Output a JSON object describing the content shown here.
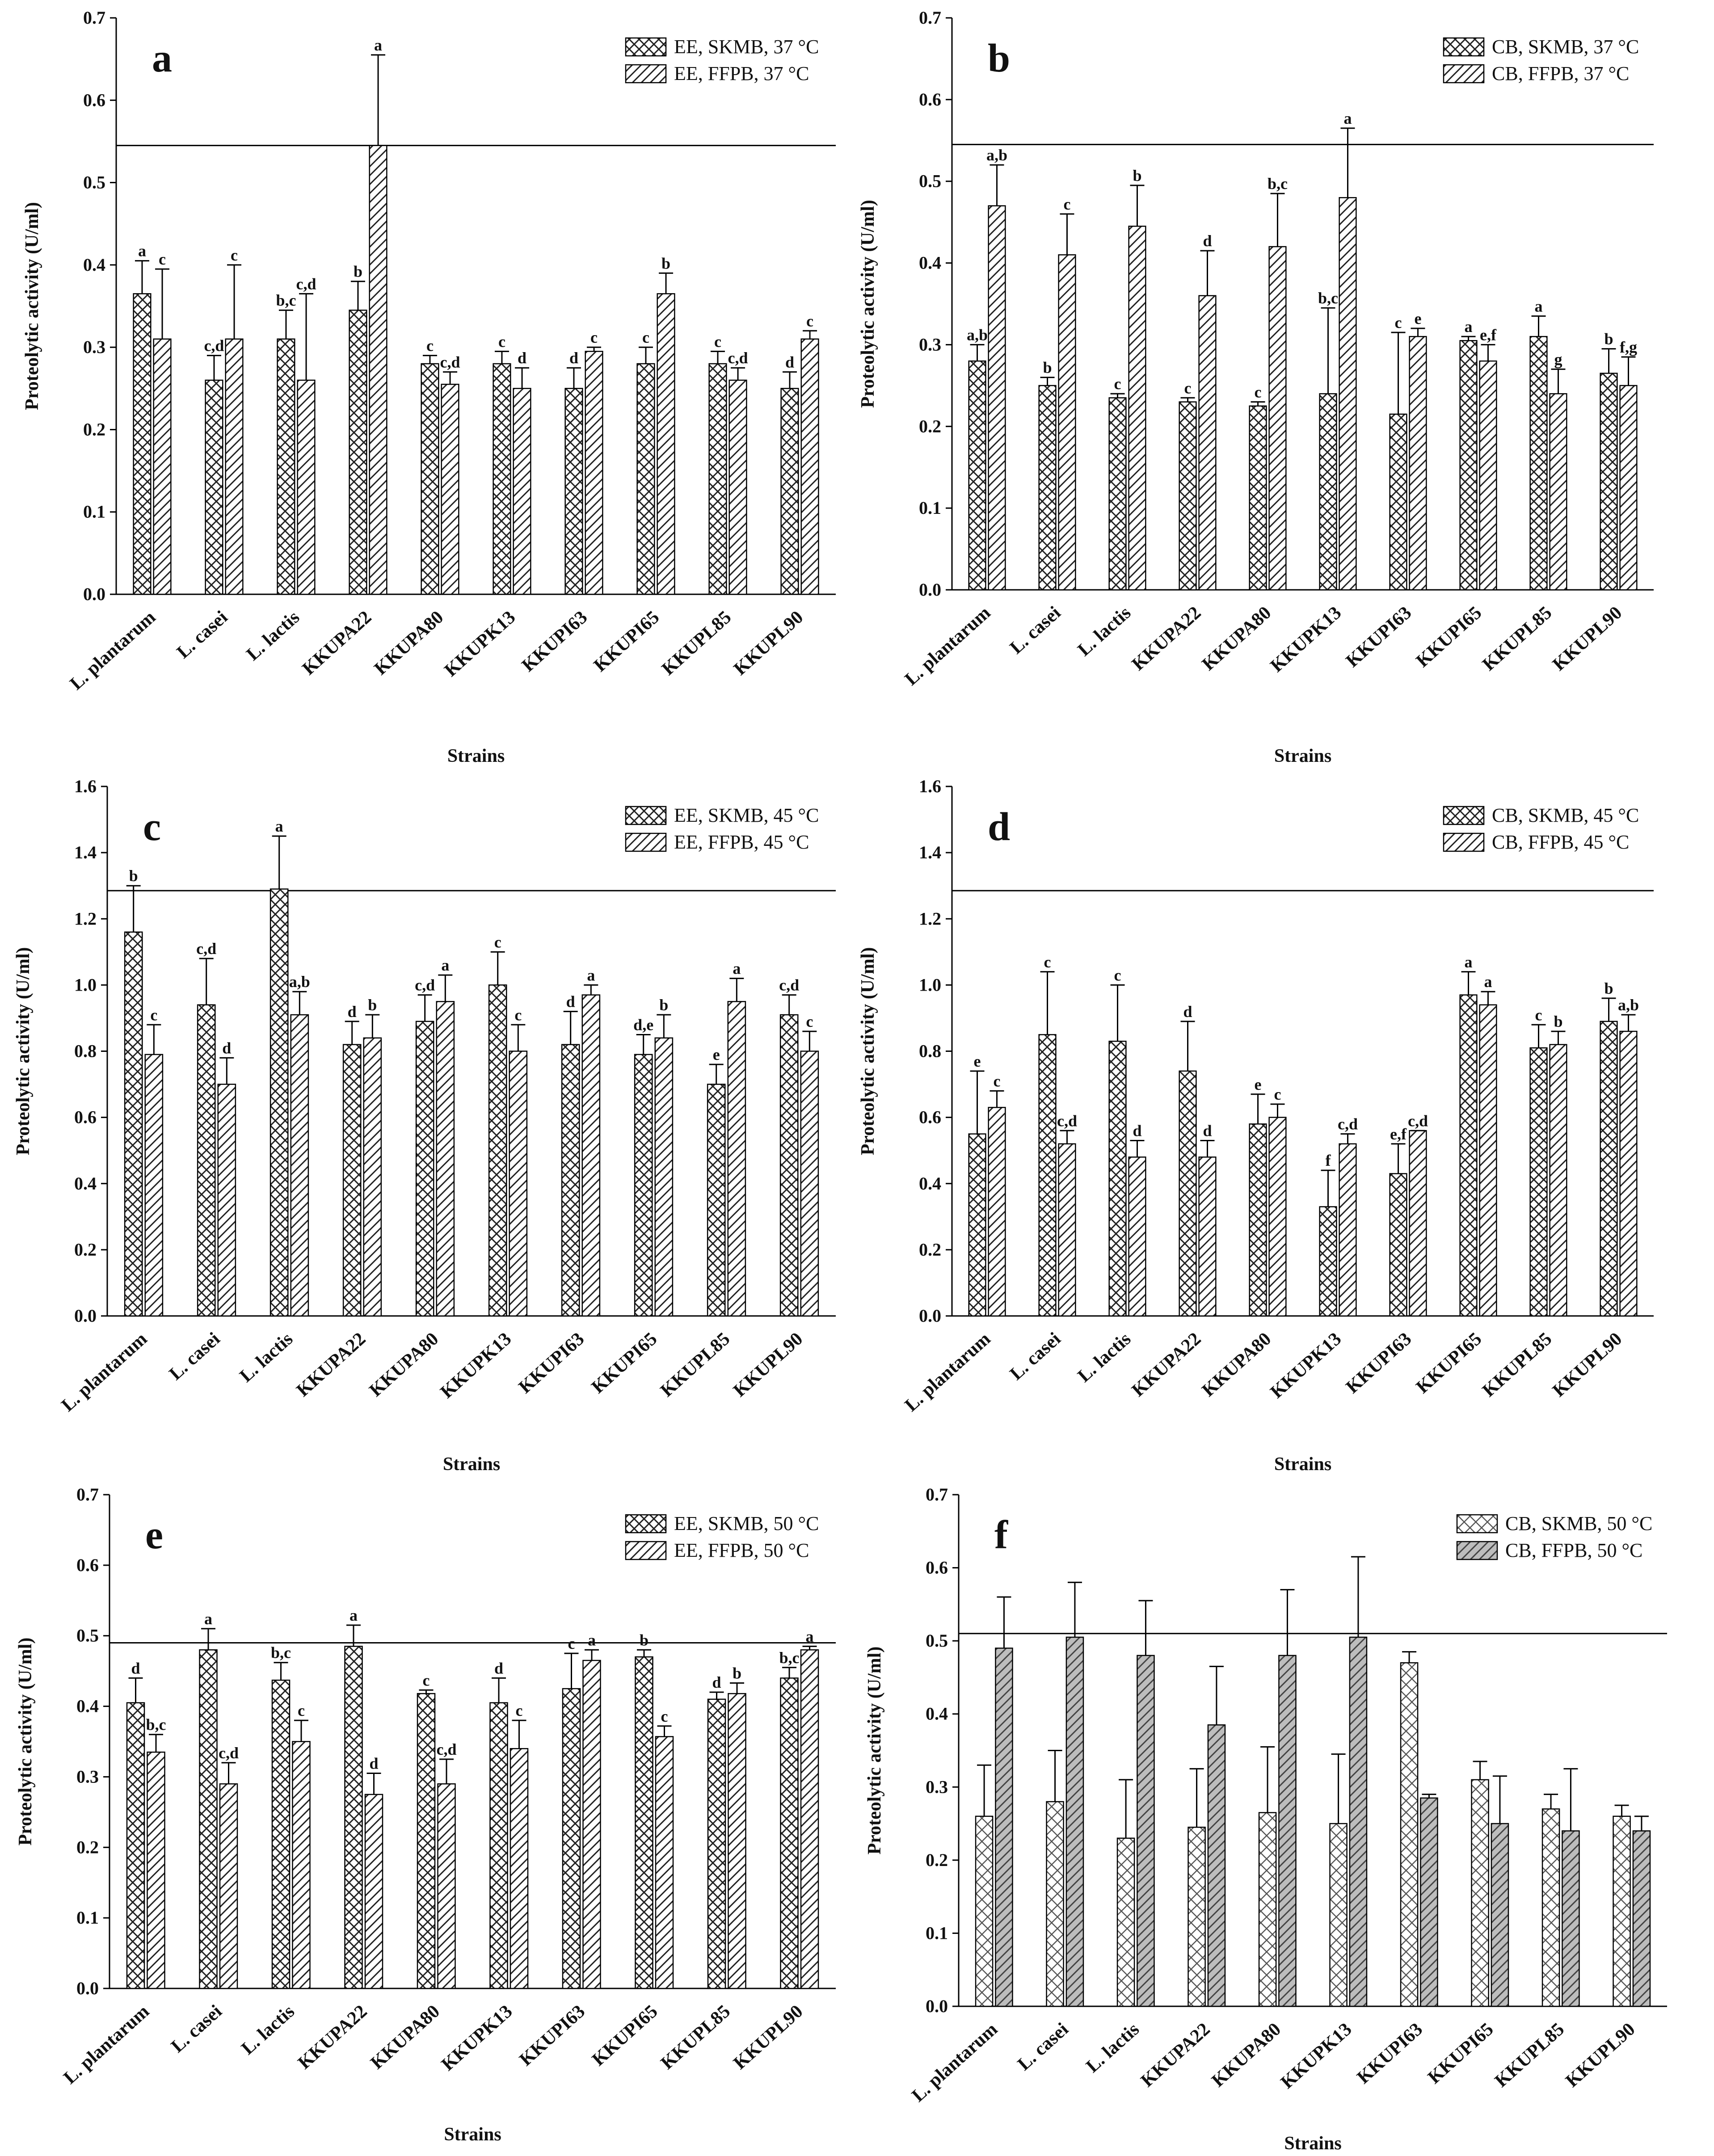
{
  "figure": {
    "y_axis_title": "Proteolytic activity (U/ml)",
    "x_axis_title": "Strains"
  },
  "chart_data": [
    {
      "type": "bar",
      "panel": "a",
      "categories": [
        "L. plantarum",
        "L. casei",
        "L. lactis",
        "KKUPA22",
        "KKUPA80",
        "KKUPK13",
        "KKUPI63",
        "KKUPI65",
        "KKUPL85",
        "KKUPL90"
      ],
      "ylim": [
        0,
        0.7
      ],
      "yticks": [
        0.0,
        0.1,
        0.2,
        0.3,
        0.4,
        0.5,
        0.6,
        0.7
      ],
      "tick_decimals": 1,
      "reference_line": 0.545,
      "xlabel": "Strains",
      "ylabel": "Proteolytic activity (U/ml)",
      "legend_position": "top-right",
      "series": [
        {
          "name": "EE, SKMB, 37 °C",
          "pattern": "crosshatch",
          "values": [
            0.365,
            0.26,
            0.31,
            0.345,
            0.28,
            0.28,
            0.25,
            0.28,
            0.28,
            0.25
          ],
          "errors": [
            0.04,
            0.03,
            0.035,
            0.035,
            0.01,
            0.015,
            0.025,
            0.02,
            0.015,
            0.02
          ],
          "letters": [
            "a",
            "c,d",
            "b,c",
            "b",
            "c",
            "c",
            "d",
            "c",
            "c",
            "d"
          ]
        },
        {
          "name": "EE, FFPB, 37 °C",
          "pattern": "diagonal",
          "values": [
            0.31,
            0.31,
            0.26,
            0.545,
            0.255,
            0.25,
            0.295,
            0.365,
            0.26,
            0.31
          ],
          "errors": [
            0.085,
            0.09,
            0.105,
            0.11,
            0.015,
            0.025,
            0.005,
            0.025,
            0.015,
            0.01
          ],
          "letters": [
            "c",
            "c",
            "c,d",
            "a",
            "c,d",
            "d",
            "c",
            "b",
            "c,d",
            "c"
          ]
        }
      ]
    },
    {
      "type": "bar",
      "panel": "b",
      "categories": [
        "L. plantarum",
        "L. casei",
        "L. lactis",
        "KKUPA22",
        "KKUPA80",
        "KKUPK13",
        "KKUPI63",
        "KKUPI65",
        "KKUPL85",
        "KKUPL90"
      ],
      "ylim": [
        0,
        0.7
      ],
      "yticks": [
        0.0,
        0.1,
        0.2,
        0.3,
        0.4,
        0.5,
        0.6,
        0.7
      ],
      "tick_decimals": 1,
      "reference_line": 0.545,
      "xlabel": "Strains",
      "ylabel": "Proteolytic activity (U/ml)",
      "legend_position": "top-right",
      "series": [
        {
          "name": "CB, SKMB, 37 °C",
          "pattern": "crosshatch",
          "values": [
            0.28,
            0.25,
            0.235,
            0.23,
            0.225,
            0.24,
            0.215,
            0.305,
            0.31,
            0.265
          ],
          "errors": [
            0.02,
            0.01,
            0.005,
            0.005,
            0.005,
            0.105,
            0.1,
            0.005,
            0.025,
            0.03
          ],
          "letters": [
            "a,b",
            "b",
            "c",
            "c",
            "c",
            "b,c",
            "c",
            "a",
            "a",
            "b"
          ]
        },
        {
          "name": "CB, FFPB, 37 °C",
          "pattern": "diagonal",
          "values": [
            0.47,
            0.41,
            0.445,
            0.36,
            0.42,
            0.48,
            0.31,
            0.28,
            0.24,
            0.25
          ],
          "errors": [
            0.05,
            0.05,
            0.05,
            0.055,
            0.065,
            0.085,
            0.01,
            0.02,
            0.03,
            0.035
          ],
          "letters": [
            "a,b",
            "c",
            "b",
            "d",
            "b,c",
            "a",
            "e",
            "e,f",
            "g",
            "f,g"
          ]
        }
      ]
    },
    {
      "type": "bar",
      "panel": "c",
      "categories": [
        "L. plantarum",
        "L. casei",
        "L. lactis",
        "KKUPA22",
        "KKUPA80",
        "KKUPK13",
        "KKUPI63",
        "KKUPI65",
        "KKUPL85",
        "KKUPL90"
      ],
      "ylim": [
        0,
        1.6
      ],
      "yticks": [
        0.0,
        0.2,
        0.4,
        0.6,
        0.8,
        1.0,
        1.2,
        1.4,
        1.6
      ],
      "tick_decimals": 1,
      "reference_line": 1.285,
      "xlabel": "Strains",
      "ylabel": "Proteolytic activity (U/ml)",
      "legend_position": "top-right",
      "series": [
        {
          "name": "EE, SKMB, 45 °C",
          "pattern": "crosshatch",
          "values": [
            1.16,
            0.94,
            1.29,
            0.82,
            0.89,
            1.0,
            0.82,
            0.79,
            0.7,
            0.91
          ],
          "errors": [
            0.14,
            0.14,
            0.16,
            0.07,
            0.08,
            0.1,
            0.1,
            0.06,
            0.06,
            0.06
          ],
          "letters": [
            "b",
            "c,d",
            "a",
            "d",
            "c,d",
            "c",
            "d",
            "d,e",
            "e",
            "c,d"
          ]
        },
        {
          "name": "EE, FFPB, 45 °C",
          "pattern": "diagonal",
          "values": [
            0.79,
            0.7,
            0.91,
            0.84,
            0.95,
            0.8,
            0.97,
            0.84,
            0.95,
            0.8
          ],
          "errors": [
            0.09,
            0.08,
            0.07,
            0.07,
            0.08,
            0.08,
            0.03,
            0.07,
            0.07,
            0.06
          ],
          "letters": [
            "c",
            "d",
            "a,b",
            "b",
            "a",
            "c",
            "a",
            "b",
            "a",
            "c"
          ]
        }
      ]
    },
    {
      "type": "bar",
      "panel": "d",
      "categories": [
        "L. plantarum",
        "L. casei",
        "L. lactis",
        "KKUPA22",
        "KKUPA80",
        "KKUPK13",
        "KKUPI63",
        "KKUPI65",
        "KKUPL85",
        "KKUPL90"
      ],
      "ylim": [
        0,
        1.6
      ],
      "yticks": [
        0.0,
        0.2,
        0.4,
        0.6,
        0.8,
        1.0,
        1.2,
        1.4,
        1.6
      ],
      "tick_decimals": 1,
      "reference_line": 1.285,
      "xlabel": "Strains",
      "ylabel": "Proteolytic activity (U/ml)",
      "legend_position": "top-right",
      "series": [
        {
          "name": "CB, SKMB, 45 °C",
          "pattern": "crosshatch",
          "values": [
            0.55,
            0.85,
            0.83,
            0.74,
            0.58,
            0.33,
            0.43,
            0.97,
            0.81,
            0.89
          ],
          "errors": [
            0.19,
            0.19,
            0.17,
            0.15,
            0.09,
            0.11,
            0.09,
            0.07,
            0.07,
            0.07
          ],
          "letters": [
            "e",
            "c",
            "c",
            "d",
            "e",
            "f",
            "e,f",
            "a",
            "c",
            "b"
          ]
        },
        {
          "name": "CB, FFPB, 45 °C",
          "pattern": "diagonal",
          "values": [
            0.63,
            0.52,
            0.48,
            0.48,
            0.6,
            0.52,
            0.56,
            0.94,
            0.82,
            0.86
          ],
          "errors": [
            0.05,
            0.04,
            0.05,
            0.05,
            0.04,
            0.03,
            0.0,
            0.04,
            0.04,
            0.05
          ],
          "letters": [
            "c",
            "c,d",
            "d",
            "d",
            "c",
            "c,d",
            "c,d",
            "a",
            "b",
            "a,b"
          ]
        }
      ]
    },
    {
      "type": "bar",
      "panel": "e",
      "categories": [
        "L. plantarum",
        "L. casei",
        "L. lactis",
        "KKUPA22",
        "KKUPA80",
        "KKUPK13",
        "KKUPI63",
        "KKUPI65",
        "KKUPL85",
        "KKUPL90"
      ],
      "ylim": [
        0,
        0.7
      ],
      "yticks": [
        0.0,
        0.1,
        0.2,
        0.3,
        0.4,
        0.5,
        0.6,
        0.7
      ],
      "tick_decimals": 1,
      "reference_line": 0.49,
      "xlabel": "Strains",
      "ylabel": "Proteolytic activity (U/ml)",
      "legend_position": "top-right",
      "series": [
        {
          "name": "EE, SKMB, 50 °C",
          "pattern": "crosshatch",
          "values": [
            0.405,
            0.48,
            0.437,
            0.485,
            0.418,
            0.405,
            0.425,
            0.47,
            0.41,
            0.44
          ],
          "errors": [
            0.035,
            0.03,
            0.025,
            0.03,
            0.005,
            0.035,
            0.05,
            0.01,
            0.01,
            0.015
          ],
          "letters": [
            "d",
            "a",
            "b,c",
            "a",
            "c",
            "d",
            "c",
            "b",
            "d",
            "b,c"
          ]
        },
        {
          "name": "EE, FFPB, 50 °C",
          "pattern": "diagonal",
          "values": [
            0.335,
            0.29,
            0.35,
            0.275,
            0.29,
            0.34,
            0.465,
            0.357,
            0.418,
            0.48
          ],
          "errors": [
            0.025,
            0.03,
            0.03,
            0.03,
            0.035,
            0.04,
            0.015,
            0.015,
            0.015,
            0.005
          ],
          "letters": [
            "b,c",
            "c,d",
            "c",
            "d",
            "c,d",
            "c",
            "a",
            "c",
            "b",
            "a"
          ]
        }
      ]
    },
    {
      "type": "bar",
      "panel": "f",
      "categories": [
        "L. plantarum",
        "L. casei",
        "L. lactis",
        "KKUPA22",
        "KKUPA80",
        "KKUPK13",
        "KKUPI63",
        "KKUPI65",
        "KKUPL85",
        "KKUPL90"
      ],
      "ylim": [
        0,
        0.7
      ],
      "yticks": [
        0.0,
        0.1,
        0.2,
        0.3,
        0.4,
        0.5,
        0.6,
        0.7
      ],
      "tick_decimals": 1,
      "reference_line": 0.51,
      "xlabel": "Strains",
      "ylabel": "Proteolytic activity (U/ml)",
      "legend_position": "top-right",
      "series": [
        {
          "name": "CB, SKMB, 50 °C",
          "pattern": "crosshatch-light",
          "values": [
            0.26,
            0.28,
            0.23,
            0.245,
            0.265,
            0.25,
            0.47,
            0.31,
            0.27,
            0.26
          ],
          "errors": [
            0.07,
            0.07,
            0.08,
            0.08,
            0.09,
            0.095,
            0.015,
            0.025,
            0.02,
            0.015
          ],
          "letters": []
        },
        {
          "name": "CB, FFPB, 50 °C",
          "pattern": "diagonal-gray",
          "values": [
            0.49,
            0.505,
            0.48,
            0.385,
            0.48,
            0.505,
            0.285,
            0.25,
            0.24,
            0.24
          ],
          "errors": [
            0.07,
            0.075,
            0.075,
            0.08,
            0.09,
            0.11,
            0.005,
            0.065,
            0.085,
            0.02
          ],
          "letters": []
        }
      ]
    }
  ]
}
